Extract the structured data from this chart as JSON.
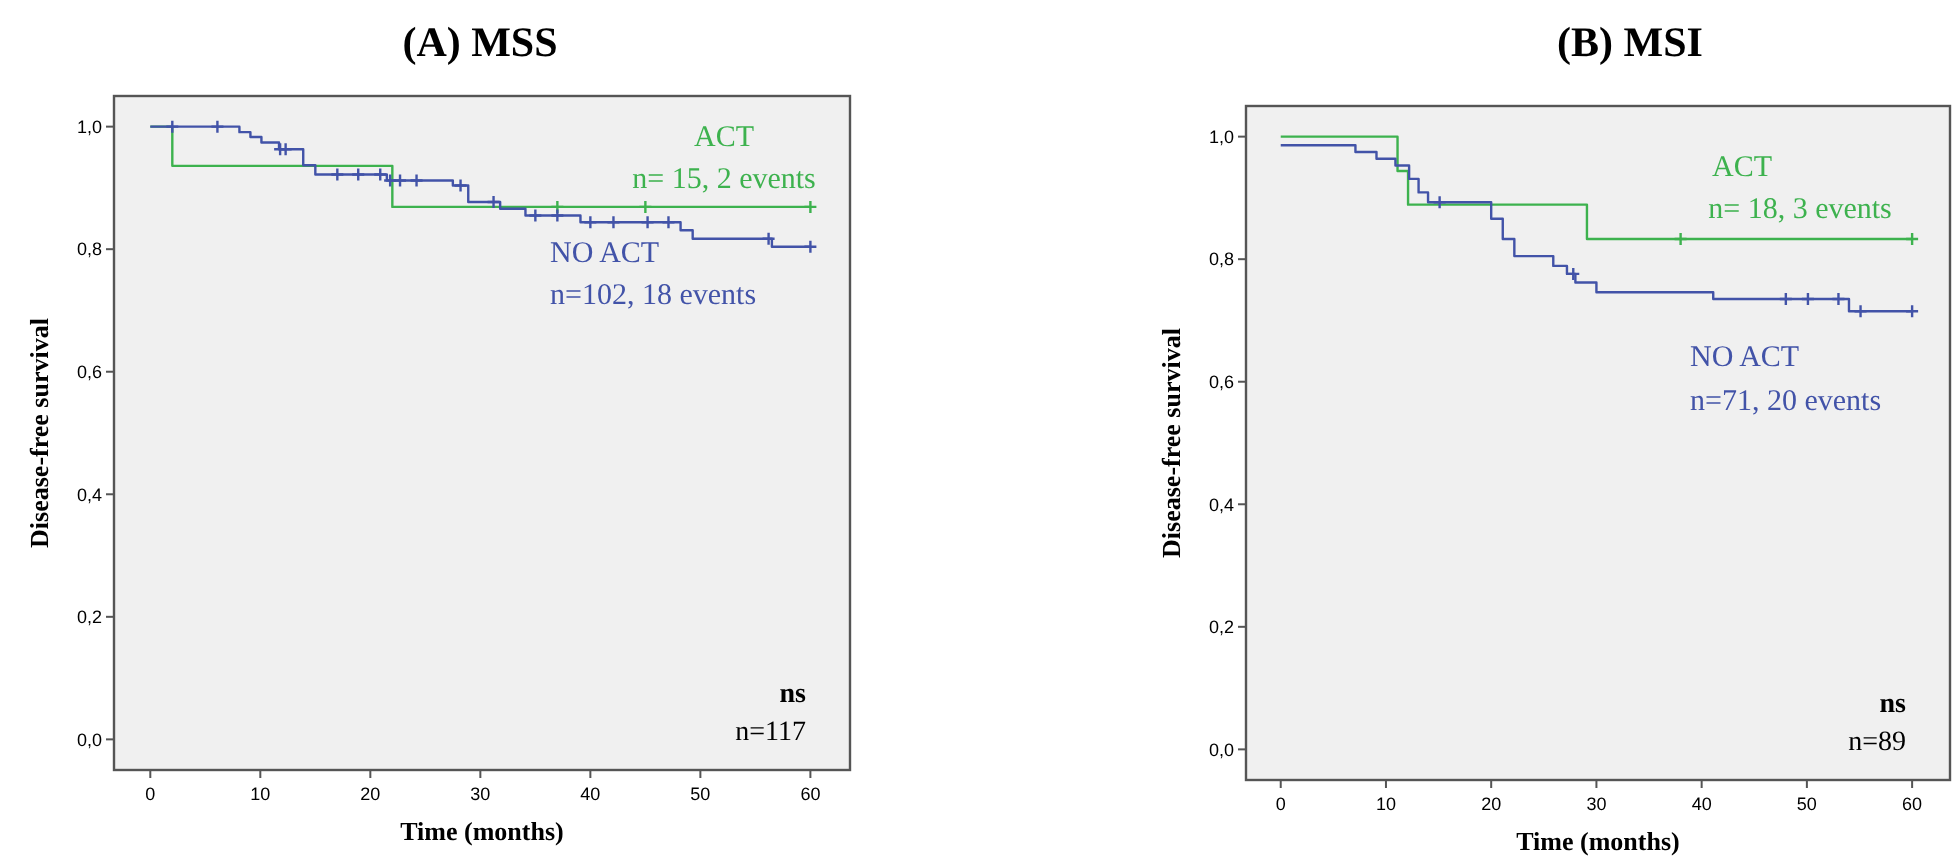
{
  "chart_data": [
    {
      "type": "step",
      "title": "(A)  MSS",
      "xlabel": "Time (months)",
      "ylabel": "Disease-free survival",
      "xlim": [
        -3.3,
        63.6
      ],
      "ylim": [
        -0.05,
        1.05
      ],
      "xticks": [
        0,
        10,
        20,
        30,
        40,
        50,
        60
      ],
      "yticks": [
        {
          "value": 0,
          "label": "0,0"
        },
        {
          "value": 0.2,
          "label": "0,2"
        },
        {
          "value": 0.4,
          "label": "0,4"
        },
        {
          "value": 0.6,
          "label": "0,6"
        },
        {
          "value": 0.8,
          "label": "0,8"
        },
        {
          "value": 1,
          "label": "1,0"
        }
      ],
      "annotations": [
        "n= 15, 2 events",
        "n=102, 18 events",
        "ns",
        "n=117"
      ],
      "series": [
        {
          "name": "ACT",
          "color": "#3db24e",
          "x": [
            0,
            2,
            22,
            60
          ],
          "values": [
            1,
            0.936,
            0.869,
            0.869
          ]
        },
        {
          "name": "NO ACT",
          "color": "#4253a8",
          "x": [
            0,
            8.1,
            9.1,
            10.1,
            11.7,
            13.9,
            15,
            21.5,
            27.5,
            28.9,
            31.8,
            34.1,
            39.1,
            48.2,
            49.3,
            56.5,
            60
          ],
          "values": [
            1,
            0.991,
            0.983,
            0.974,
            0.963,
            0.937,
            0.922,
            0.912,
            0.904,
            0.877,
            0.866,
            0.855,
            0.844,
            0.831,
            0.817,
            0.804,
            0.804
          ]
        },
        {
          "type": "scatter",
          "marker": "cross",
          "color": "#3db24e",
          "x": [
            37,
            45,
            60
          ],
          "values": [
            0.869,
            0.869,
            0.869
          ]
        },
        {
          "type": "scatter",
          "marker": "cross",
          "color": "#4253a8",
          "x": [
            2,
            6.1,
            11.8,
            12.3,
            17,
            18.9,
            20.9,
            21.8,
            22.7,
            24.2,
            28.2,
            31.2,
            35,
            37,
            40,
            42.1,
            45.2,
            47.1,
            56.2,
            60
          ],
          "values": [
            1,
            1,
            0.963,
            0.963,
            0.922,
            0.922,
            0.922,
            0.912,
            0.912,
            0.912,
            0.904,
            0.877,
            0.855,
            0.855,
            0.844,
            0.844,
            0.844,
            0.844,
            0.817,
            0.804
          ]
        }
      ]
    },
    {
      "type": "step",
      "title": "(B) MSI",
      "xlabel": "Time (months)",
      "ylabel": "Disease-free survival",
      "xlim": [
        -3.3,
        63.6
      ],
      "ylim": [
        -0.05,
        1.05
      ],
      "xticks": [
        0,
        10,
        20,
        30,
        40,
        50,
        60
      ],
      "yticks": [
        {
          "value": 0,
          "label": "0,0"
        },
        {
          "value": 0.2,
          "label": "0,2"
        },
        {
          "value": 0.4,
          "label": "0,4"
        },
        {
          "value": 0.6,
          "label": "0,6"
        },
        {
          "value": 0.8,
          "label": "0,8"
        },
        {
          "value": 1,
          "label": "1,0"
        }
      ],
      "annotations": [
        "n= 18, 3 events",
        "n=71, 20 events",
        "ns",
        "n=89"
      ],
      "series": [
        {
          "name": "ACT",
          "color": "#3db24e",
          "x": [
            0,
            11.1,
            12.1,
            29.1,
            60
          ],
          "values": [
            1,
            0.944,
            0.889,
            0.833,
            0.833
          ]
        },
        {
          "name": "NO ACT",
          "color": "#4253a8",
          "x": [
            0,
            7.1,
            9.1,
            10.9,
            12.2,
            13.1,
            14,
            20,
            21.1,
            22.2,
            25.9,
            27.2,
            28,
            30,
            41.1,
            54,
            60
          ],
          "values": [
            0.986,
            0.975,
            0.964,
            0.953,
            0.931,
            0.909,
            0.893,
            0.866,
            0.833,
            0.805,
            0.789,
            0.776,
            0.762,
            0.746,
            0.735,
            0.715,
            0.715
          ]
        },
        {
          "type": "scatter",
          "marker": "cross",
          "color": "#3db24e",
          "x": [
            38,
            60
          ],
          "values": [
            0.833,
            0.833
          ]
        },
        {
          "type": "scatter",
          "marker": "cross",
          "color": "#4253a8",
          "x": [
            15.1,
            27.8,
            48,
            50.1,
            53,
            55.1,
            60
          ],
          "values": [
            0.893,
            0.776,
            0.735,
            0.735,
            0.735,
            0.715,
            0.715
          ]
        }
      ]
    }
  ]
}
